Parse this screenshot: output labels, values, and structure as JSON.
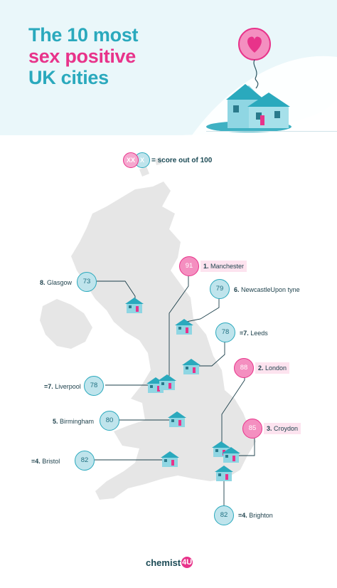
{
  "title": {
    "line1": "The 10 most",
    "line2": "sex positive",
    "line3": "UK cities"
  },
  "colors": {
    "teal": "#2aa9bd",
    "pink": "#e8338a",
    "map": "#e6e6e6",
    "house": "#8fd6e3"
  },
  "legend": {
    "sample": "XX",
    "sample2": "X",
    "text": "= score out of 100"
  },
  "cities": [
    {
      "rank": "1.",
      "name": "Manchester",
      "score": "91",
      "style": "pink"
    },
    {
      "rank": "2.",
      "name": "London",
      "score": "88",
      "style": "pink"
    },
    {
      "rank": "3.",
      "name": "Croydon",
      "score": "85",
      "style": "pink"
    },
    {
      "rank": "=4.",
      "name": "Bristol",
      "score": "82",
      "style": "teal"
    },
    {
      "rank": "=4.",
      "name": "Brighton",
      "score": "82",
      "style": "teal"
    },
    {
      "rank": "5.",
      "name": "Birmingham",
      "score": "80",
      "style": "teal"
    },
    {
      "rank": "6.",
      "name": "NewcastleUpon tyne",
      "score": "79",
      "style": "teal"
    },
    {
      "rank": "=7.",
      "name": "Leeds",
      "score": "78",
      "style": "teal"
    },
    {
      "rank": "=7.",
      "name": "Liverpool",
      "score": "78",
      "style": "teal"
    },
    {
      "rank": "8.",
      "name": "Glasgow",
      "score": "73",
      "style": "teal"
    }
  ],
  "logo": {
    "text": "chemist",
    "mark": "4U"
  }
}
